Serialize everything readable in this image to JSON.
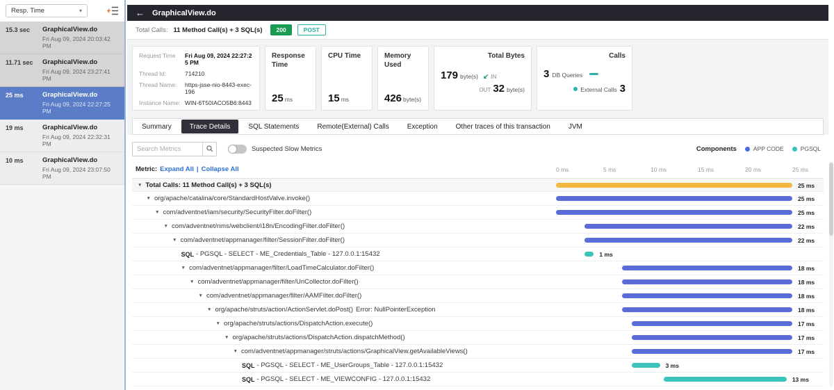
{
  "colors": {
    "accent_green": "#189a52",
    "accent_teal": "#2bb2a2",
    "link_blue": "#2e6fd9",
    "bar_blue": "#5a6cd8",
    "bar_teal": "#3ac4bc",
    "bar_orange": "#f1b73e"
  },
  "icons": {
    "back_arrow": "←",
    "caret_down": "▾",
    "expand_arrow": "▼",
    "in_arrow": "↙"
  },
  "sidebar": {
    "sort_label": "Resp. Time",
    "items": [
      {
        "time": "15.3 sec",
        "name": "GraphicalView.do",
        "date": "Fri Aug 09, 2024 20:03:42 PM",
        "shade": "gray"
      },
      {
        "time": "11.71 sec",
        "name": "GraphicalView.do",
        "date": "Fri Aug 09, 2024 23:27:41 PM",
        "shade": "gray"
      },
      {
        "time": "25 ms",
        "name": "GraphicalView.do",
        "date": "Fri Aug 09, 2024 22:27:25 PM",
        "shade": "selected"
      },
      {
        "time": "19 ms",
        "name": "GraphicalView.do",
        "date": "Fri Aug 09, 2024 22:32:31 PM",
        "shade": "light"
      },
      {
        "time": "10 ms",
        "name": "GraphicalView.do",
        "date": "Fri Aug 09, 2024 23:07:50 PM",
        "shade": "light"
      }
    ]
  },
  "header": {
    "title": "GraphicalView.do"
  },
  "calls_bar": {
    "label": "Total Calls:",
    "value": "11 Method Call(s) + 3 SQL(s)",
    "status": "200",
    "method": "POST"
  },
  "cards": {
    "request": {
      "rows": [
        {
          "label": "Request Time",
          "value": "Fri Aug 09, 2024 22:27:25 PM",
          "strong": true
        },
        {
          "label": "Thread Id:",
          "value": "714210",
          "strong": false
        },
        {
          "label": "Thread Name:",
          "value": "https-jsse-nio-8443-exec-196",
          "strong": false
        },
        {
          "label": "Instance Name:",
          "value": "WIN-6T50IACO5B6:8443",
          "strong": false
        }
      ]
    },
    "response": {
      "title": "Response Time",
      "value": "25",
      "unit": "ms"
    },
    "cpu": {
      "title": "CPU Time",
      "value": "15",
      "unit": "ms"
    },
    "memory": {
      "title": "Memory Used",
      "value": "426",
      "unit": "byte(s)"
    },
    "bytes": {
      "title": "Total Bytes",
      "in_value": "179",
      "in_unit": "byte(s)",
      "in_label": "IN",
      "out_label": "OUT",
      "out_value": "32",
      "out_unit": "byte(s)"
    },
    "calls": {
      "title": "Calls",
      "db_value": "3",
      "db_label": "DB Queries",
      "ext_label": "External Calls",
      "ext_value": "3"
    }
  },
  "tabs": [
    {
      "label": "Summary",
      "active": false
    },
    {
      "label": "Trace Details",
      "active": true
    },
    {
      "label": "SQL Statements",
      "active": false
    },
    {
      "label": "Remote(External) Calls",
      "active": false
    },
    {
      "label": "Exception",
      "active": false
    },
    {
      "label": "Other traces of this transaction",
      "active": false
    },
    {
      "label": "JVM",
      "active": false
    }
  ],
  "toolbar": {
    "search_placeholder": "Search Metrics",
    "toggle_label": "Suspected Slow Metrics",
    "components_label": "Components",
    "legend": [
      {
        "label": "APP CODE",
        "color": "#4a6be0"
      },
      {
        "label": "PGSQL",
        "color": "#35c4bc"
      }
    ]
  },
  "metric_bar": {
    "label": "Metric:",
    "expand": "Expand All",
    "separator": "|",
    "collapse": "Collapse All"
  },
  "timeline": {
    "ticks": [
      {
        "label": "0 ms",
        "value": 0
      },
      {
        "label": "5 ms",
        "value": 5
      },
      {
        "label": "10 ms",
        "value": 10
      },
      {
        "label": "15 ms",
        "value": 15
      },
      {
        "label": "20 ms",
        "value": 20
      },
      {
        "label": "25 ms",
        "value": 25
      }
    ]
  },
  "trace": {
    "rows": [
      {
        "root": true,
        "level": 0,
        "arrow": true,
        "label": "Total Calls: 11 Method Call(s) + 3 SQL(s)",
        "start": 0,
        "duration": 25,
        "color": "orange",
        "duration_label": "25 ms"
      },
      {
        "level": 1,
        "arrow": true,
        "label": "org/apache/catalina/core/StandardHostValve.invoke()",
        "start": 0,
        "duration": 25,
        "color": "blue",
        "duration_label": "25 ms"
      },
      {
        "level": 2,
        "arrow": true,
        "label": "com/adventnet/iam/security/SecurityFilter.doFilter()",
        "start": 0,
        "duration": 25,
        "color": "blue",
        "duration_label": "25 ms"
      },
      {
        "level": 3,
        "arrow": true,
        "label": "com/adventnet/nms/webclient/i18n/EncodingFilter.doFilter()",
        "start": 3,
        "duration": 22,
        "color": "blue",
        "duration_label": "22 ms"
      },
      {
        "level": 4,
        "arrow": true,
        "label": "com/adventnet/appmanager/filter/SessionFilter.doFilter()",
        "start": 3,
        "duration": 22,
        "color": "blue",
        "duration_label": "22 ms"
      },
      {
        "level": 5,
        "sql_prefix": "SQL",
        "label": "- PGSQL - SELECT - ME_Credentials_Table - 127.0.0.1:15432",
        "start": 3,
        "duration": 1,
        "color": "teal",
        "duration_label": "1 ms"
      },
      {
        "level": 5,
        "arrow": true,
        "label": "com/adventnet/appmanager/filter/LoadTimeCalculator.doFilter()",
        "start": 7,
        "duration": 18,
        "color": "blue",
        "duration_label": "18 ms"
      },
      {
        "level": 6,
        "arrow": true,
        "label": "com/adventnet/appmanager/filter/UriCollector.doFilter()",
        "start": 7,
        "duration": 18,
        "color": "blue",
        "duration_label": "18 ms"
      },
      {
        "level": 7,
        "arrow": true,
        "label": "com/adventnet/appmanager/filter/AAMFilter.doFilter()",
        "start": 7,
        "duration": 18,
        "color": "blue",
        "duration_label": "18 ms"
      },
      {
        "level": 8,
        "arrow": true,
        "label": "org/apache/struts/action/ActionServlet.doPost()",
        "error": "Error: NullPointerException",
        "start": 7,
        "duration": 18,
        "color": "blue",
        "duration_label": "18 ms"
      },
      {
        "level": 9,
        "arrow": true,
        "label": "org/apache/struts/actions/DispatchAction.execute()",
        "start": 8,
        "duration": 17,
        "color": "blue",
        "duration_label": "17 ms"
      },
      {
        "level": 10,
        "arrow": true,
        "label": "org/apache/struts/actions/DispatchAction.dispatchMethod()",
        "start": 8,
        "duration": 17,
        "color": "blue",
        "duration_label": "17 ms"
      },
      {
        "level": 11,
        "arrow": true,
        "label": "com/adventnet/appmanager/struts/actions/GraphicalView.getAvailableViews()",
        "start": 8,
        "duration": 17,
        "color": "blue",
        "duration_label": "17 ms"
      },
      {
        "level": 12,
        "sql_prefix": "SQL",
        "label": "- PGSQL - SELECT - ME_UserGroups_Table - 127.0.0.1:15432",
        "start": 8,
        "duration": 3,
        "color": "teal",
        "duration_label": "3 ms"
      },
      {
        "level": 12,
        "sql_prefix": "SQL",
        "label": "- PGSQL - SELECT - ME_VIEWCONFIG - 127.0.0.1:15432",
        "start": 11.4,
        "duration": 13,
        "color": "teal",
        "duration_label": "13 ms"
      }
    ]
  }
}
